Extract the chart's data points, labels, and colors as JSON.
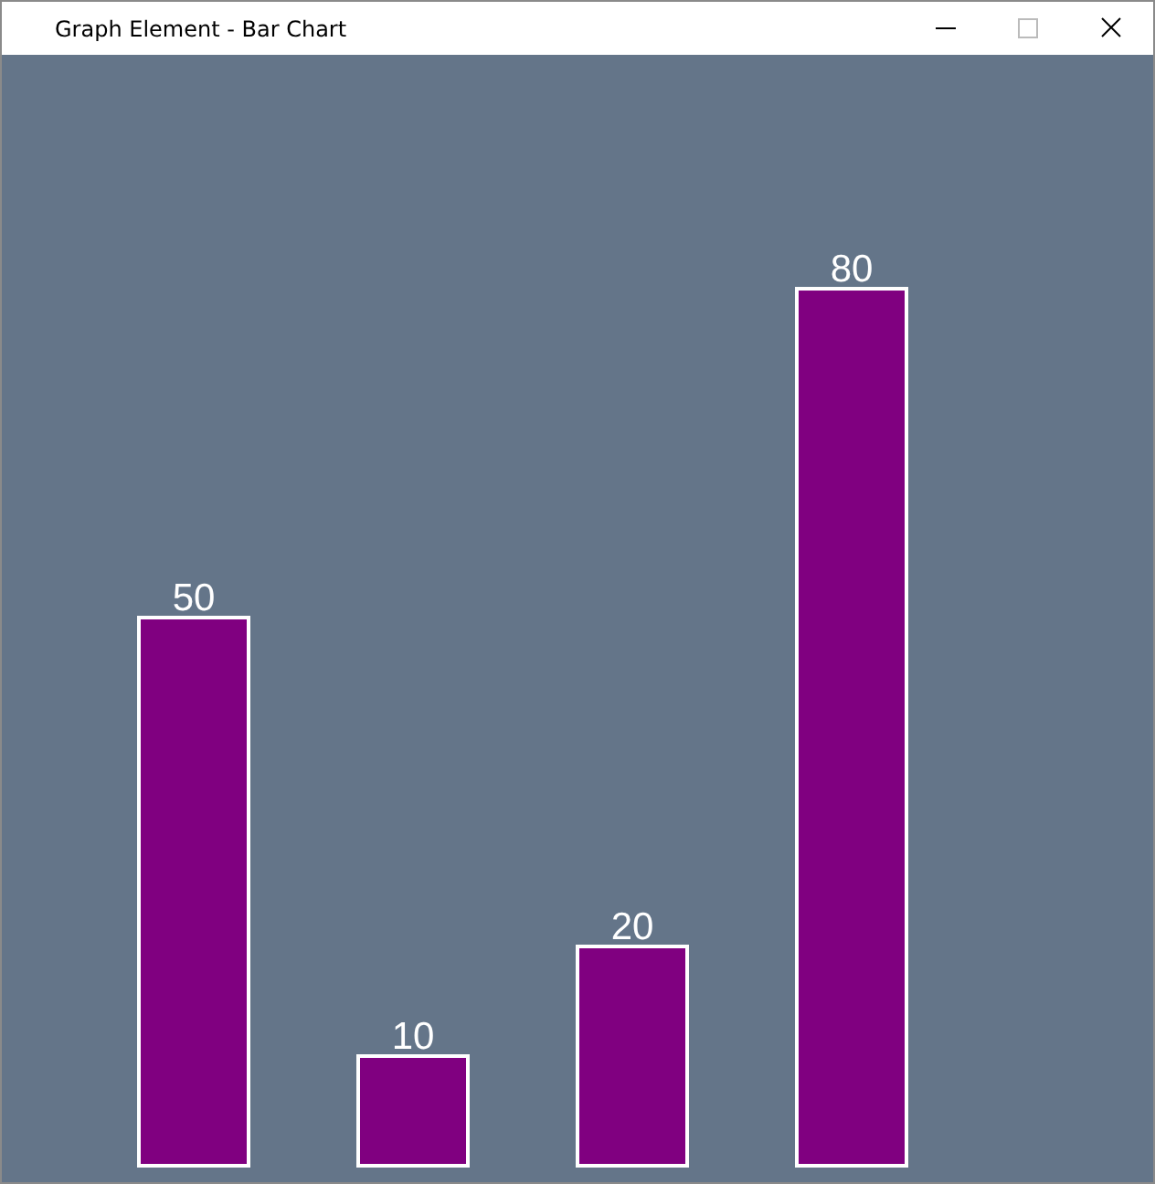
{
  "chart_data": {
    "type": "bar",
    "title": "Graph Element - Bar Chart",
    "categories": [
      null,
      null,
      null,
      null
    ],
    "values": [
      50,
      10,
      20,
      80
    ],
    "color": "#800080",
    "data_labels": true
  }
}
